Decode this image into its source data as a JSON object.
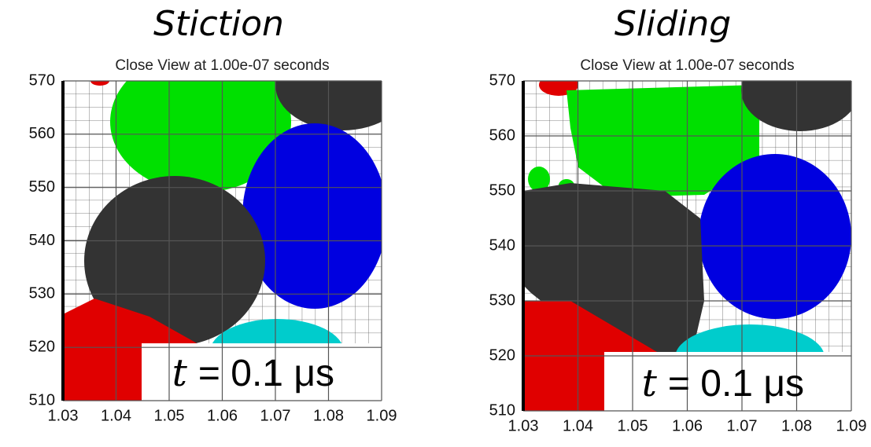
{
  "panels": [
    {
      "heading": "Stiction",
      "title": "Close View at 1.00e-07 seconds",
      "xlim": [
        1.03,
        1.09
      ],
      "ylim": [
        510,
        570
      ],
      "xticks": [
        1.03,
        1.04,
        1.05,
        1.06,
        1.07,
        1.08,
        1.09
      ],
      "yticks": [
        510,
        520,
        530,
        540,
        550,
        560,
        570
      ],
      "annotation_var": "t",
      "annotation_text": "= 0.1 μs"
    },
    {
      "heading": "Sliding",
      "title": "Close View at 1.00e-07 seconds",
      "xlim": [
        1.03,
        1.09
      ],
      "ylim": [
        510,
        570
      ],
      "xticks": [
        1.03,
        1.04,
        1.05,
        1.06,
        1.07,
        1.08,
        1.09
      ],
      "yticks": [
        510,
        520,
        530,
        540,
        550,
        560,
        570
      ],
      "annotation_var": "t",
      "annotation_text": "= 0.1 μs"
    }
  ]
}
